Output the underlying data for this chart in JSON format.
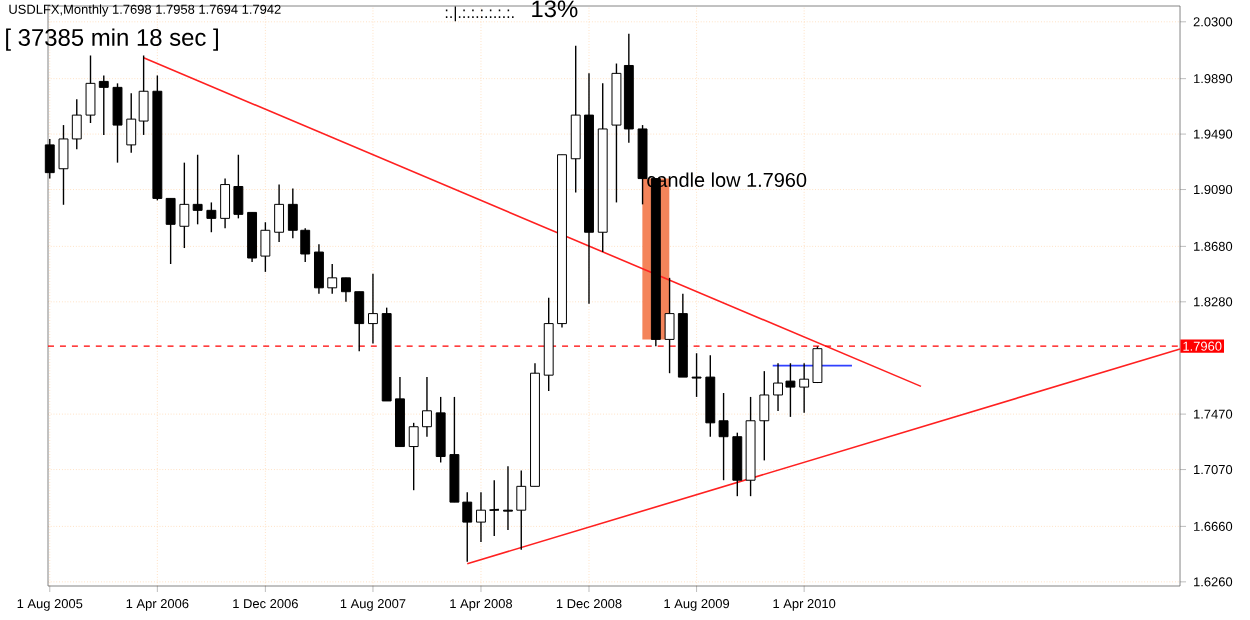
{
  "chart_data": {
    "type": "candlestick",
    "x": [
      "2005-08",
      "2005-09",
      "2005-10",
      "2005-11",
      "2005-12",
      "2006-01",
      "2006-02",
      "2006-03",
      "2006-04",
      "2006-05",
      "2006-06",
      "2006-07",
      "2006-08",
      "2006-09",
      "2006-10",
      "2006-11",
      "2006-12",
      "2007-01",
      "2007-02",
      "2007-03",
      "2007-04",
      "2007-05",
      "2007-06",
      "2007-07",
      "2007-08",
      "2007-09",
      "2007-10",
      "2007-11",
      "2007-12",
      "2008-01",
      "2008-02",
      "2008-03",
      "2008-04",
      "2008-05",
      "2008-06",
      "2008-07",
      "2008-08",
      "2008-09",
      "2008-10",
      "2008-11",
      "2008-12",
      "2009-01",
      "2009-02",
      "2009-03",
      "2009-04",
      "2009-05",
      "2009-06",
      "2009-07",
      "2009-08",
      "2009-09",
      "2009-10",
      "2009-11",
      "2009-12",
      "2010-01",
      "2010-02",
      "2010-03",
      "2010-04",
      "2010-05"
    ],
    "ohlc": [
      [
        1.9412,
        1.9455,
        1.917,
        1.9212
      ],
      [
        1.924,
        1.9555,
        1.898,
        1.9455
      ],
      [
        1.9455,
        1.9742,
        1.938,
        1.9627
      ],
      [
        1.9627,
        2.0057,
        1.957,
        1.9856
      ],
      [
        1.987,
        1.9913,
        1.9484,
        1.9827
      ],
      [
        1.9827,
        1.9856,
        1.9284,
        1.9555
      ],
      [
        1.9412,
        1.9785,
        1.9355,
        1.9598
      ],
      [
        1.9584,
        2.0057,
        1.9484,
        1.9799
      ],
      [
        1.9799,
        1.9913,
        1.9012,
        1.9026
      ],
      [
        1.9026,
        1.9026,
        1.8553,
        1.8839
      ],
      [
        1.8825,
        1.9284,
        1.8668,
        1.8983
      ],
      [
        1.8983,
        1.9341,
        1.8839,
        1.894
      ],
      [
        1.894,
        1.8997,
        1.8782,
        1.8882
      ],
      [
        1.8882,
        1.9169,
        1.8811,
        1.9126
      ],
      [
        1.9112,
        1.9341,
        1.8882,
        1.8911
      ],
      [
        1.8925,
        1.8925,
        1.8567,
        1.8596
      ],
      [
        1.861,
        1.8854,
        1.8496,
        1.8796
      ],
      [
        1.8782,
        1.9126,
        1.8711,
        1.8983
      ],
      [
        1.8983,
        1.9097,
        1.8739,
        1.8796
      ],
      [
        1.8796,
        1.8811,
        1.8567,
        1.8625
      ],
      [
        1.8639,
        1.8696,
        1.8338,
        1.8381
      ],
      [
        1.8381,
        1.8553,
        1.8338,
        1.8453
      ],
      [
        1.8453,
        1.8453,
        1.8281,
        1.8353
      ],
      [
        1.8353,
        1.8353,
        1.7923,
        1.8123
      ],
      [
        1.8123,
        1.8482,
        1.798,
        1.8195
      ],
      [
        1.8195,
        1.8238,
        1.7565,
        1.7565
      ],
      [
        1.758,
        1.7737,
        1.7236,
        1.7236
      ],
      [
        1.7236,
        1.7407,
        1.6921,
        1.7379
      ],
      [
        1.7379,
        1.7737,
        1.7307,
        1.7494
      ],
      [
        1.7479,
        1.7594,
        1.7121,
        1.7164
      ],
      [
        1.7178,
        1.7594,
        1.6835,
        1.6835
      ],
      [
        1.6835,
        1.6906,
        1.6405,
        1.6691
      ],
      [
        1.6691,
        1.6906,
        1.6548,
        1.6777
      ],
      [
        1.6777,
        1.6993,
        1.6591,
        1.678
      ],
      [
        1.6777,
        1.7093,
        1.6634,
        1.677
      ],
      [
        1.6777,
        1.7064,
        1.6491,
        1.6949
      ],
      [
        1.6949,
        1.7837,
        1.6949,
        1.7765
      ],
      [
        1.7751,
        1.831,
        1.7637,
        1.8123
      ],
      [
        1.8123,
        1.9341,
        1.8094,
        1.9341
      ],
      [
        1.9312,
        2.0128,
        1.9069,
        1.9627
      ],
      [
        1.9627,
        1.9928,
        1.8267,
        1.8782
      ],
      [
        1.8782,
        1.9856,
        1.8639,
        1.9527
      ],
      [
        1.9555,
        1.9999,
        1.8997,
        1.9928
      ],
      [
        1.9985,
        2.0214,
        1.9427,
        1.9527
      ],
      [
        1.9527,
        1.9555,
        1.8983,
        1.9169
      ],
      [
        1.9169,
        1.9169,
        1.796,
        1.8009
      ],
      [
        1.8009,
        1.8453,
        1.7765,
        1.8195
      ],
      [
        1.8195,
        1.8338,
        1.7737,
        1.7737
      ],
      [
        1.7737,
        1.7909,
        1.7594,
        1.773
      ],
      [
        1.7737,
        1.7894,
        1.7307,
        1.7407
      ],
      [
        1.7422,
        1.7622,
        1.6993,
        1.7307
      ],
      [
        1.7307,
        1.7336,
        1.6878,
        1.6993
      ],
      [
        1.6993,
        1.7594,
        1.6878,
        1.7422
      ],
      [
        1.7422,
        1.778,
        1.7136,
        1.7608
      ],
      [
        1.7608,
        1.7837,
        1.7493,
        1.7694
      ],
      [
        1.7708,
        1.7837,
        1.745,
        1.7665
      ],
      [
        1.7665,
        1.7837,
        1.7479,
        1.7722
      ],
      [
        1.7698,
        1.7958,
        1.7694,
        1.7942
      ]
    ],
    "series": [
      {
        "type": "bar",
        "color": "#f4845a",
        "x": [
          "2009-05"
        ],
        "base": [
          1.8009
        ],
        "values": [
          0.116
        ]
      },
      {
        "type": "line",
        "color": "#ff2020",
        "x": [
          "2006-03",
          "2010-12-21"
        ],
        "values": [
          2.004,
          1.767
        ]
      },
      {
        "type": "line",
        "color": "#ff2020",
        "x": [
          "2008-03",
          "2012-07-28"
        ],
        "values": [
          1.639,
          1.794
        ]
      },
      {
        "type": "line",
        "color": "#3040ff",
        "x": [
          "2010-01-20",
          "2010-07-18"
        ],
        "values": [
          1.782,
          1.782
        ]
      }
    ],
    "xlim": [
      "2005-07-28",
      "2012-07-28"
    ],
    "xticks": [
      {
        "value": "2005-08",
        "label": "1 Aug 2005"
      },
      {
        "value": "2006-04",
        "label": "1 Apr 2006"
      },
      {
        "value": "2006-12",
        "label": "1 Dec 2006"
      },
      {
        "value": "2007-08",
        "label": "1 Aug 2007"
      },
      {
        "value": "2008-04",
        "label": "1 Apr 2008"
      },
      {
        "value": "2008-12",
        "label": "1 Dec 2008"
      },
      {
        "value": "2009-08",
        "label": "1 Aug 2009"
      },
      {
        "value": "2010-04",
        "label": "1 Apr 2010"
      }
    ],
    "ylim": [
      1.623,
      2.0414
    ],
    "yticks": [
      {
        "value": 2.03,
        "label": "2.0300"
      },
      {
        "value": 1.989,
        "label": "1.9890"
      },
      {
        "value": 1.949,
        "label": "1.9490"
      },
      {
        "value": 1.909,
        "label": "1.9090"
      },
      {
        "value": 1.868,
        "label": "1.8680"
      },
      {
        "value": 1.828,
        "label": "1.8280"
      },
      {
        "value": 1.747,
        "label": "1.7470"
      },
      {
        "value": 1.707,
        "label": "1.7070"
      },
      {
        "value": 1.666,
        "label": "1.6660"
      },
      {
        "value": 1.626,
        "label": "1.6260"
      }
    ],
    "ref_lines": [
      {
        "axis": "y",
        "value": 1.796,
        "label": "1.7960",
        "color": "#ff0000",
        "line_style": "dashed"
      }
    ],
    "grid": true,
    "annotations": [
      "USDLFX,Monthly  1.7698 1.7958 1.7694 1.7942",
      "[ 37385 min 18 sec ]",
      ":.|.:.:.:.:.:.:.",
      "13%",
      "candle low 1.7960"
    ]
  }
}
